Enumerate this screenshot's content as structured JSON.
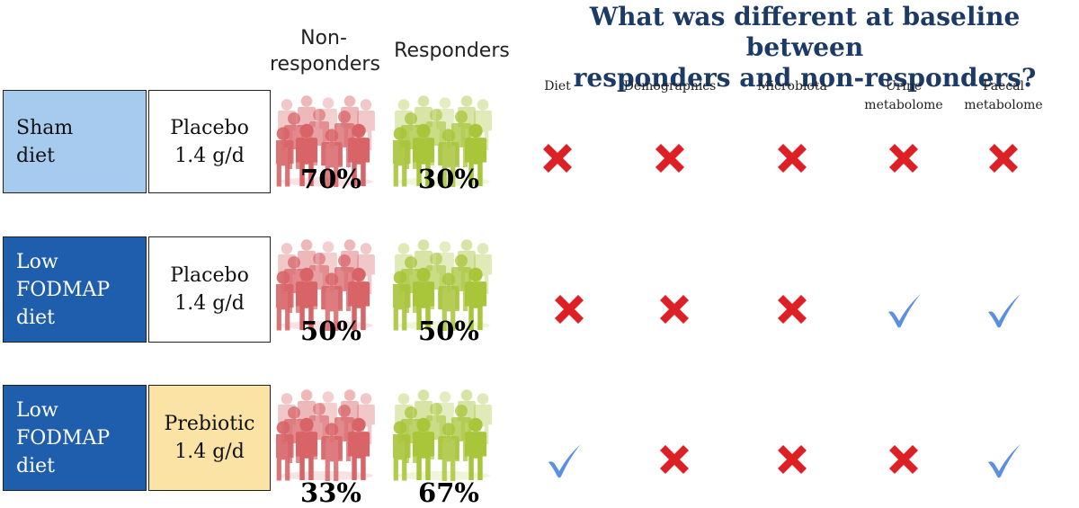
{
  "colors": {
    "sham_fill": "#a7caef",
    "lowfodmap_fill": "#1f5eac",
    "placebo_fill": "#ffffff",
    "prebiotic_fill": "#fbe3a5",
    "nonresponder": "#d86468",
    "responder": "#a9c53a",
    "cross": "#dd1f26",
    "check": "#5b8fe2",
    "title": "#1c3a66"
  },
  "headers": {
    "nonresponders": [
      "Non-",
      "responders"
    ],
    "responders": "Responders"
  },
  "title": [
    "What was different at baseline between",
    "responders and non-responders?"
  ],
  "categories": [
    [
      "Diet"
    ],
    [
      "Demographics"
    ],
    [
      "Microbiota"
    ],
    [
      "Urine",
      "metabolome"
    ],
    [
      "Faecal",
      "metabolome"
    ]
  ],
  "rows": [
    {
      "diet": [
        "Sham",
        "diet"
      ],
      "supplement": [
        "Placebo",
        "1.4 g/d"
      ],
      "nonresponders_pct": "70%",
      "responders_pct": "30%",
      "marks": [
        "cross-icon",
        "cross-icon",
        "cross-icon",
        "cross-icon",
        "cross-icon"
      ]
    },
    {
      "diet": [
        "Low",
        "FODMAP",
        "diet"
      ],
      "supplement": [
        "Placebo",
        "1.4 g/d"
      ],
      "nonresponders_pct": "50%",
      "responders_pct": "50%",
      "marks": [
        "cross-icon",
        "cross-icon",
        "cross-icon",
        "check-icon",
        "check-icon"
      ]
    },
    {
      "diet": [
        "Low",
        "FODMAP",
        "diet"
      ],
      "supplement": [
        "Prebiotic",
        "1.4 g/d"
      ],
      "nonresponders_pct": "33%",
      "responders_pct": "67%",
      "marks": [
        "check-icon",
        "cross-icon",
        "cross-icon",
        "cross-icon",
        "check-icon"
      ]
    }
  ]
}
